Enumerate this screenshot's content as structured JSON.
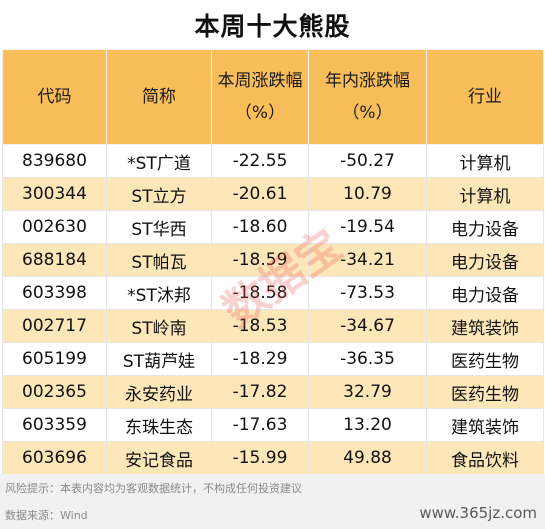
{
  "title": "本周十大熊股",
  "headers": [
    "代码",
    "简称",
    "本周涨跌幅（%）",
    "年内涨跌幅（%）",
    "行业"
  ],
  "rows": [
    [
      "839680",
      "*ST广道",
      "-22.55",
      "-50.27",
      "计算机"
    ],
    [
      "300344",
      "ST立方",
      "-20.61",
      "10.79",
      "计算机"
    ],
    [
      "002630",
      "ST华西",
      "-18.60",
      "-19.54",
      "电力设备"
    ],
    [
      "688184",
      "ST帕瓦",
      "-18.59",
      "-34.21",
      "电力设备"
    ],
    [
      "603398",
      "*ST沐邦",
      "-18.58",
      "-73.53",
      "电力设备"
    ],
    [
      "002717",
      "ST岭南",
      "-18.53",
      "-34.67",
      "建筑装饰"
    ],
    [
      "605199",
      "ST葫芦娃",
      "-18.29",
      "-36.35",
      "医药生物"
    ],
    [
      "002365",
      "永安药业",
      "-17.82",
      "32.79",
      "医药生物"
    ],
    [
      "603359",
      "东珠生态",
      "-17.63",
      "13.20",
      "建筑装饰"
    ],
    [
      "603696",
      "安记食品",
      "-15.99",
      "49.88",
      "食品饮料"
    ]
  ],
  "footer": {
    "risk": "风险提示：本表内容均为客观数据统计，不构成任何投资建议",
    "source": "数据来源：Wind",
    "site": "www.365jz.com"
  },
  "watermark": "数据宝",
  "colors": {
    "header_bg": "#f9be5a",
    "stripe_bg": "#fde7b8"
  }
}
